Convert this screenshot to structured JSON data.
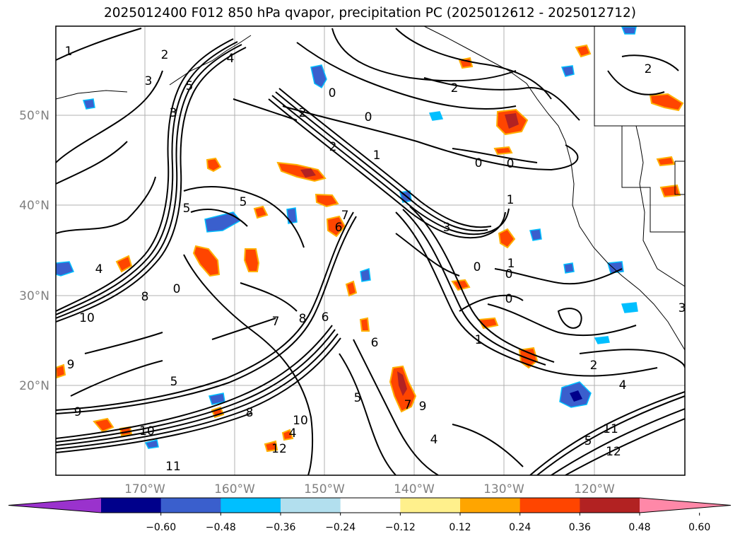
{
  "title": "2025012400 F012 850 hPa qvapor, precipitation PC (2025012612 - 2025012712)",
  "map": {
    "lat_labels": [
      "50°N",
      "40°N",
      "30°N",
      "20°N"
    ],
    "lon_labels": [
      "170°W",
      "160°W",
      "150°W",
      "140°W",
      "130°W",
      "120°W"
    ],
    "contour_labels": [
      "1",
      "2",
      "3",
      "4",
      "5",
      "3",
      "2",
      "0",
      "0",
      "2",
      "0",
      "1",
      "5",
      "6",
      "7",
      "5",
      "4",
      "0",
      "8",
      "9",
      "10",
      "4",
      "5",
      "6",
      "7",
      "8",
      "9",
      "10",
      "11",
      "12",
      "0",
      "1",
      "2",
      "3",
      "0",
      "1",
      "0",
      "4",
      "5",
      "6",
      "7",
      "8",
      "9",
      "10",
      "11",
      "12",
      "0",
      "1",
      "2",
      "2",
      "3",
      "4",
      "5"
    ]
  },
  "colorbar": {
    "colors": [
      "#9a32cd",
      "#00008b",
      "#3a5fcd",
      "#00bfff",
      "#b2dfee",
      "#ffffff",
      "#fff08c",
      "#ffa500",
      "#ff4500",
      "#b22222",
      "#ff88a8"
    ],
    "ticks": [
      "−0.60",
      "−0.48",
      "−0.36",
      "−0.24",
      "−0.12",
      "0.12",
      "0.24",
      "0.36",
      "0.48",
      "0.60"
    ]
  }
}
